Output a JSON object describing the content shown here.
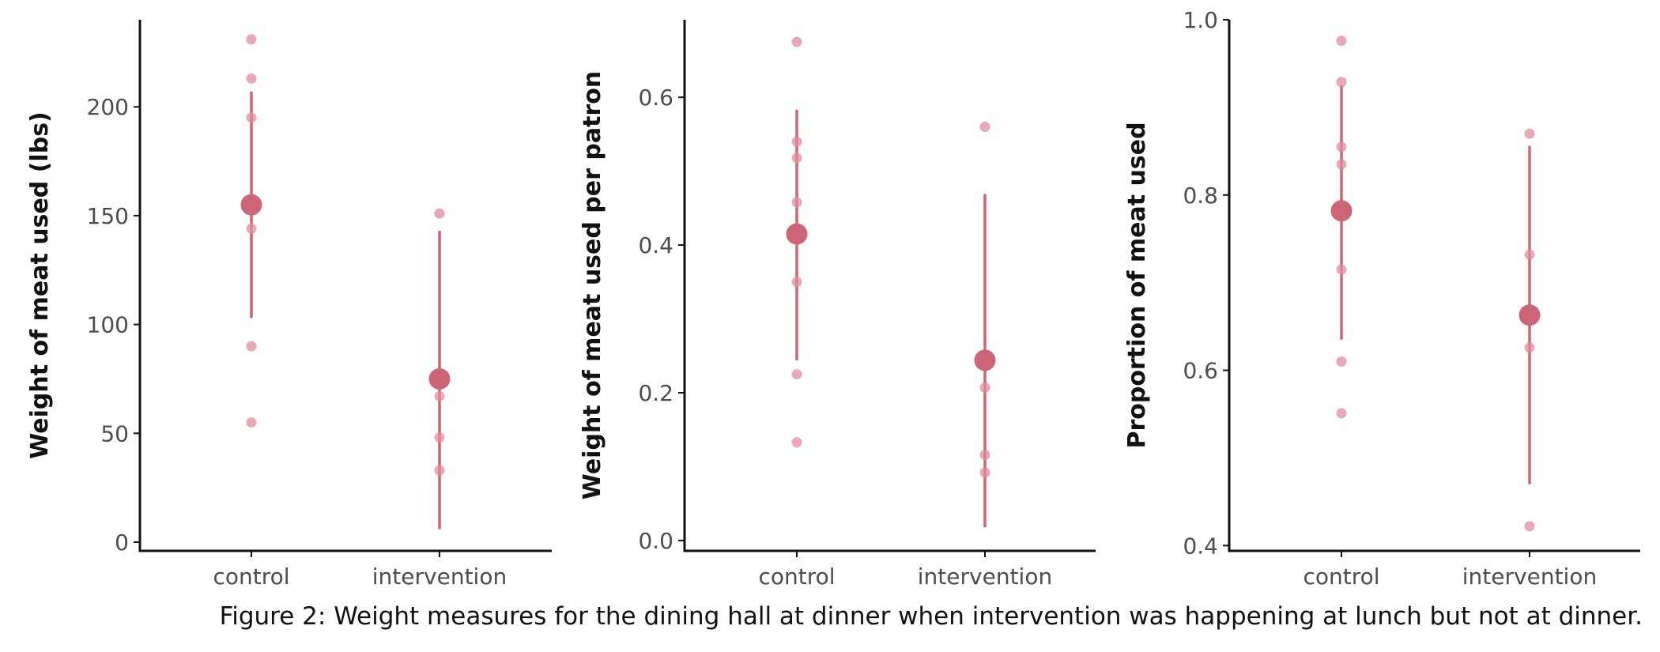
{
  "caption": "Figure 2: Weight measures for the dining hall at dinner when intervention was happening at lunch but not at dinner.",
  "colors": {
    "point": "#e08c9c",
    "mean": "#cc6677",
    "axis": "#111111"
  },
  "chart_data": [
    {
      "type": "scatter",
      "ylabel": "Weight of meat used (lbs)",
      "categories": [
        "control",
        "intervention"
      ],
      "ylim": [
        -4,
        240
      ],
      "yticks": [
        0,
        50,
        100,
        150,
        200
      ],
      "series": [
        {
          "category": "control",
          "points": [
            231,
            213,
            195,
            144,
            90,
            55
          ],
          "mean": 155,
          "interval": [
            103,
            207
          ]
        },
        {
          "category": "intervention",
          "points": [
            151,
            67,
            48,
            33
          ],
          "mean": 75,
          "interval": [
            6,
            143
          ]
        }
      ]
    },
    {
      "type": "scatter",
      "ylabel": "Weight of meat used per patron",
      "categories": [
        "control",
        "intervention"
      ],
      "ylim": [
        -0.014,
        0.705
      ],
      "yticks": [
        0.0,
        0.2,
        0.4,
        0.6
      ],
      "series": [
        {
          "category": "control",
          "points": [
            0.675,
            0.54,
            0.518,
            0.458,
            0.35,
            0.225,
            0.133
          ],
          "mean": 0.415,
          "interval": [
            0.244,
            0.583
          ]
        },
        {
          "category": "intervention",
          "points": [
            0.56,
            0.207,
            0.116,
            0.092
          ],
          "mean": 0.244,
          "interval": [
            0.018,
            0.469
          ]
        }
      ]
    },
    {
      "type": "scatter",
      "ylabel": "Proportion of meat used",
      "categories": [
        "control",
        "intervention"
      ],
      "ylim": [
        0.394,
        1.0
      ],
      "yticks": [
        0.4,
        0.6,
        0.8,
        1.0
      ],
      "series": [
        {
          "category": "control",
          "points": [
            0.976,
            0.929,
            0.855,
            0.835,
            0.715,
            0.61,
            0.551
          ],
          "mean": 0.782,
          "interval": [
            0.635,
            0.925
          ]
        },
        {
          "category": "intervention",
          "points": [
            0.87,
            0.732,
            0.626,
            0.422
          ],
          "mean": 0.663,
          "interval": [
            0.47,
            0.856
          ]
        }
      ]
    }
  ]
}
